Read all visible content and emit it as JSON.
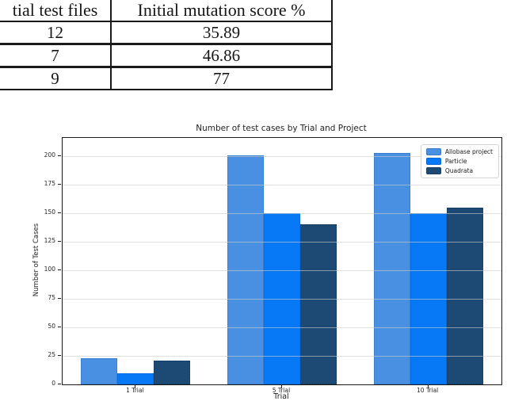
{
  "table": {
    "headers": [
      "tial test files",
      "Initial mutation score %"
    ],
    "rows": [
      [
        "12",
        "35.89"
      ],
      [
        "7",
        "46.86"
      ],
      [
        "9",
        "77"
      ]
    ]
  },
  "chart_data": {
    "type": "bar",
    "title": "Number of test cases by Trial and Project",
    "xlabel": "Trial",
    "ylabel": "Number of Test Cases",
    "categories": [
      "1 Trial",
      "5 Trial",
      "10 Trial"
    ],
    "series": [
      {
        "name": "Allobase project",
        "color": "#4a90e2",
        "edge": "#3a7fd2",
        "edge_style": "solid",
        "values": [
          23,
          201,
          203
        ]
      },
      {
        "name": "Particle",
        "color": "#0779f7",
        "edge": "#066ee2",
        "edge_style": "solid",
        "values": [
          10,
          150,
          150
        ]
      },
      {
        "name": "Quadrata",
        "color": "#1d4a74",
        "edge": "#0f3456",
        "edge_style": "dotted",
        "values": [
          21,
          140,
          155
        ]
      }
    ],
    "yticks": [
      0,
      25,
      50,
      75,
      100,
      125,
      150,
      175,
      200
    ],
    "ylim": [
      0,
      216
    ],
    "grid": true,
    "legend_position": "upper right"
  }
}
